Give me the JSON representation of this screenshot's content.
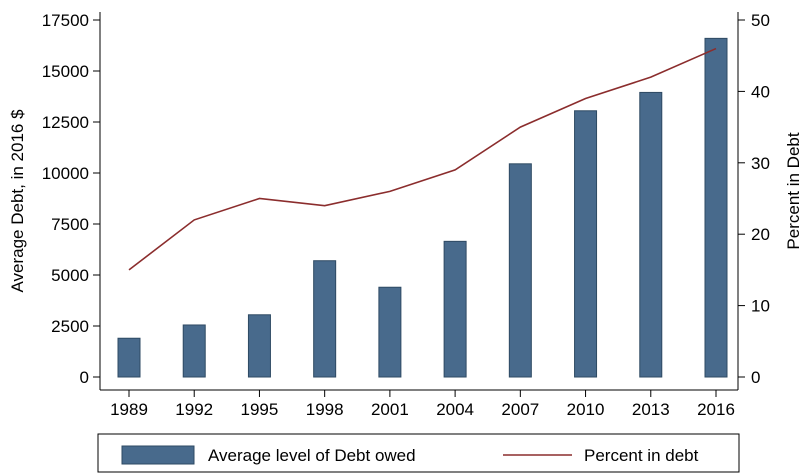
{
  "chart_data": {
    "type": "bar",
    "categories": [
      "1989",
      "1992",
      "1995",
      "1998",
      "2001",
      "2004",
      "2007",
      "2010",
      "2013",
      "2016"
    ],
    "series": [
      {
        "name": "Average level of Debt owed",
        "type": "bar",
        "axis": "left",
        "color": "#486a8c",
        "values": [
          1900,
          2550,
          3050,
          5700,
          4400,
          6650,
          10450,
          13050,
          13950,
          16600
        ]
      },
      {
        "name": "Percent in debt",
        "type": "line",
        "axis": "right",
        "color": "#8b2d2d",
        "values": [
          15,
          22,
          25,
          24,
          26,
          29,
          35,
          39,
          42,
          46
        ]
      }
    ],
    "ylabel": "Average Debt, in 2016 $",
    "ylabel_right": "Percent in Debt",
    "ylim": [
      0,
      17500
    ],
    "yticks": [
      "0",
      "2500",
      "5000",
      "7500",
      "10000",
      "12500",
      "15000",
      "17500"
    ],
    "ylim_right": [
      0,
      50
    ],
    "yticks_right": [
      "0",
      "10",
      "20",
      "30",
      "40",
      "50"
    ],
    "grid": false,
    "legend_position": "bottom"
  }
}
